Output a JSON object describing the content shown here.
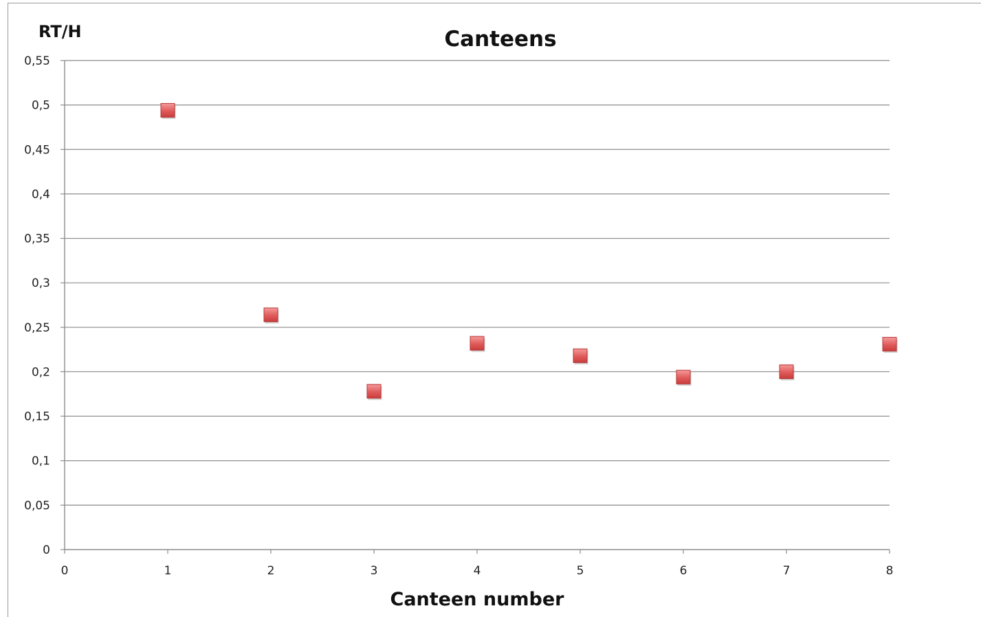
{
  "chart_data": {
    "type": "scatter",
    "title": "Canteens",
    "xlabel": "Canteen number",
    "ylabel": "RT/H",
    "xlim": [
      0,
      8
    ],
    "ylim": [
      0,
      0.55
    ],
    "x_ticks": [
      "0",
      "1",
      "2",
      "3",
      "4",
      "5",
      "6",
      "7",
      "8"
    ],
    "y_ticks": [
      "0",
      "0,05",
      "0,1",
      "0,15",
      "0,2",
      "0,25",
      "0,3",
      "0,35",
      "0,4",
      "0,45",
      "0,5",
      "0,55"
    ],
    "grid": "horizontal",
    "legend": "none",
    "marker": "square",
    "marker_color": "#e05a5a",
    "series": [
      {
        "x": [
          1,
          2,
          3,
          4,
          5,
          6,
          7,
          8
        ],
        "y": [
          0.494,
          0.264,
          0.178,
          0.232,
          0.218,
          0.194,
          0.2,
          0.231
        ]
      }
    ]
  }
}
